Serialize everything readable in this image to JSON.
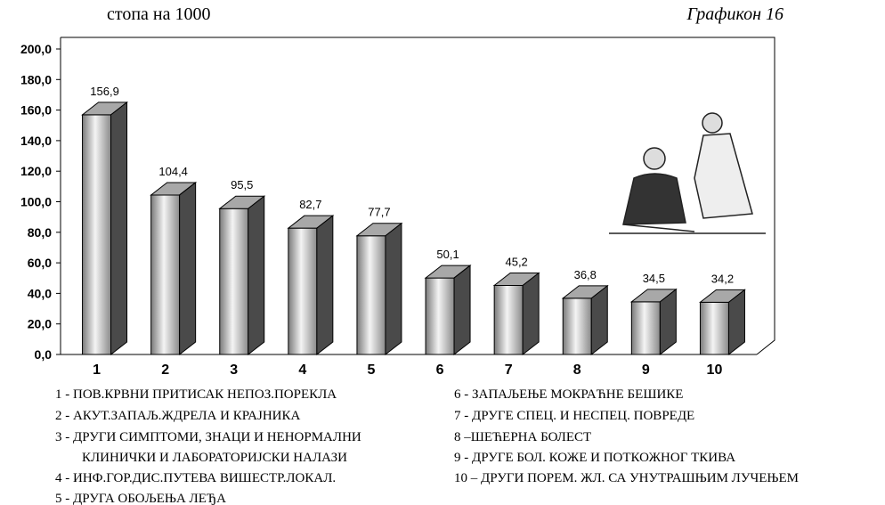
{
  "chart_data": {
    "type": "bar",
    "unit_label": "стопа на 1000",
    "chart_label": "Графикон 16",
    "categories": [
      "1",
      "2",
      "3",
      "4",
      "5",
      "6",
      "7",
      "8",
      "9",
      "10"
    ],
    "values": [
      156.9,
      104.4,
      95.5,
      82.7,
      77.7,
      50.1,
      45.2,
      36.8,
      34.5,
      34.2
    ],
    "value_labels": [
      "156,9",
      "104,4",
      "95,5",
      "82,7",
      "77,7",
      "50,1",
      "45,2",
      "36,8",
      "34,5",
      "34,2"
    ],
    "color": "#a8a8a8",
    "ylim": [
      0,
      200
    ],
    "yticks": [
      {
        "value": 0,
        "label": "0,0"
      },
      {
        "value": 20,
        "label": "20,0"
      },
      {
        "value": 40,
        "label": "40,0"
      },
      {
        "value": 60,
        "label": "60,0"
      },
      {
        "value": 80,
        "label": "80,0"
      },
      {
        "value": 100,
        "label": "100,0"
      },
      {
        "value": 120,
        "label": "120,0"
      },
      {
        "value": 140,
        "label": "140,0"
      },
      {
        "value": 160,
        "label": "160,0"
      },
      {
        "value": 180,
        "label": "180,0"
      },
      {
        "value": 200,
        "label": "200,0"
      }
    ],
    "legend_left": [
      "1 - ПОВ.КРВНИ ПРИТИСАК НЕПОЗ.ПОРЕКЛА",
      "2 - АКУТ.ЗАПАЉ.ЖДРЕЛА И КРАЈНИКА",
      "3 - ДРУГИ СИМПТОМИ, ЗНАЦИ И НЕНОРМАЛНИ",
      "КЛИНИЧКИ И ЛАБОРАТОРИЈСКИ НАЛАЗИ",
      "4 - ИНФ.ГОР.ДИС.ПУТЕВА ВИШЕСТР.ЛОКАЛ.",
      "5 - ДРУГА ОБОЉЕЊА ЛЕЂА"
    ],
    "legend_right": [
      "6 -  ЗАПАЉЕЊЕ МОКРАЋНЕ БЕШИКЕ",
      "7 - ДРУГЕ СПЕЦ. И НЕСПЕЦ. ПОВРЕДЕ",
      "8 –ШЕЋЕРНА БОЛЕСТ",
      "9 - ДРУГЕ БОЛ. КОЖЕ И ПОТКОЖНОГ ТКИВА",
      "10 – ДРУГИ ПОРЕМ. ЖЛ. СА УНУТРАШЊИМ ЛУЧЕЊЕМ"
    ]
  }
}
